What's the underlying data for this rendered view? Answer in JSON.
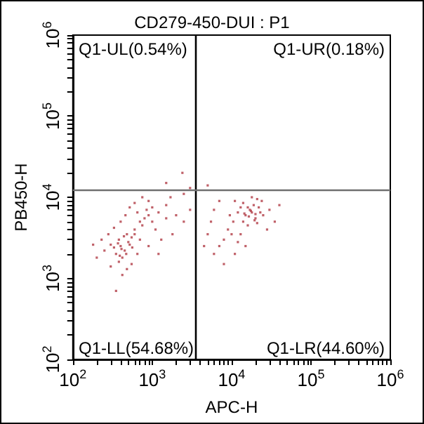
{
  "chart_data": {
    "type": "scatter",
    "title": "CD279-450-DUI : P1",
    "xlabel": "APC-H",
    "ylabel": "PB450-H",
    "log": "xy",
    "grid": false,
    "marker": "square",
    "xlim": [
      100,
      1000000
    ],
    "ylim": [
      100,
      1000000
    ],
    "xticks": [
      {
        "value": 100,
        "label": "10$^{2}$"
      },
      {
        "value": 200,
        "label": null
      },
      {
        "value": 300,
        "label": null
      },
      {
        "value": 400,
        "label": null
      },
      {
        "value": 500,
        "label": null
      },
      {
        "value": 600,
        "label": null
      },
      {
        "value": 700,
        "label": null
      },
      {
        "value": 800,
        "label": null
      },
      {
        "value": 900,
        "label": null
      },
      {
        "value": 1000,
        "label": "10$^{3}$"
      },
      {
        "value": 2000,
        "label": null
      },
      {
        "value": 3000,
        "label": null
      },
      {
        "value": 4000,
        "label": null
      },
      {
        "value": 5000,
        "label": null
      },
      {
        "value": 6000,
        "label": null
      },
      {
        "value": 7000,
        "label": null
      },
      {
        "value": 8000,
        "label": null
      },
      {
        "value": 9000,
        "label": null
      },
      {
        "value": 10000,
        "label": "10$^{4}$"
      },
      {
        "value": 20000,
        "label": null
      },
      {
        "value": 30000,
        "label": null
      },
      {
        "value": 40000,
        "label": null
      },
      {
        "value": 50000,
        "label": null
      },
      {
        "value": 60000,
        "label": null
      },
      {
        "value": 70000,
        "label": null
      },
      {
        "value": 80000,
        "label": null
      },
      {
        "value": 90000,
        "label": null
      },
      {
        "value": 100000,
        "label": "10$^{5}$"
      },
      {
        "value": 200000,
        "label": null
      },
      {
        "value": 300000,
        "label": null
      },
      {
        "value": 400000,
        "label": null
      },
      {
        "value": 500000,
        "label": null
      },
      {
        "value": 600000,
        "label": null
      },
      {
        "value": 700000,
        "label": null
      },
      {
        "value": 800000,
        "label": null
      },
      {
        "value": 900000,
        "label": null
      },
      {
        "value": 1000000,
        "label": "10$^{6}$"
      }
    ],
    "yticks": [
      {
        "value": 100,
        "label": "10$^{2}$"
      },
      {
        "value": 200,
        "label": null
      },
      {
        "value": 300,
        "label": null
      },
      {
        "value": 400,
        "label": null
      },
      {
        "value": 500,
        "label": null
      },
      {
        "value": 600,
        "label": null
      },
      {
        "value": 700,
        "label": null
      },
      {
        "value": 800,
        "label": null
      },
      {
        "value": 900,
        "label": null
      },
      {
        "value": 1000,
        "label": "10$^{3}$"
      },
      {
        "value": 2000,
        "label": null
      },
      {
        "value": 3000,
        "label": null
      },
      {
        "value": 4000,
        "label": null
      },
      {
        "value": 5000,
        "label": null
      },
      {
        "value": 6000,
        "label": null
      },
      {
        "value": 7000,
        "label": null
      },
      {
        "value": 8000,
        "label": null
      },
      {
        "value": 9000,
        "label": null
      },
      {
        "value": 10000,
        "label": "10$^{4}$"
      },
      {
        "value": 20000,
        "label": null
      },
      {
        "value": 30000,
        "label": null
      },
      {
        "value": 40000,
        "label": null
      },
      {
        "value": 50000,
        "label": null
      },
      {
        "value": 60000,
        "label": null
      },
      {
        "value": 70000,
        "label": null
      },
      {
        "value": 80000,
        "label": null
      },
      {
        "value": 90000,
        "label": null
      },
      {
        "value": 100000,
        "label": "10$^{5}$"
      },
      {
        "value": 200000,
        "label": null
      },
      {
        "value": 300000,
        "label": null
      },
      {
        "value": 400000,
        "label": null
      },
      {
        "value": 500000,
        "label": null
      },
      {
        "value": 600000,
        "label": null
      },
      {
        "value": 700000,
        "label": null
      },
      {
        "value": 800000,
        "label": null
      },
      {
        "value": 900000,
        "label": null
      },
      {
        "value": 1000000,
        "label": "10$^{6}$"
      }
    ],
    "ref_lines": [
      {
        "axis": "x",
        "value": 3550,
        "color": "#000000"
      },
      {
        "axis": "y",
        "value": 12300,
        "color": "#707070"
      }
    ],
    "annotations": [
      "Q1-UL(0.54%)",
      "Q1-UR(0.18%)",
      "Q1-LL(54.68%)",
      "Q1-LR(44.60%)"
    ],
    "series": [
      {
        "color": "#b03a44",
        "x": [
          400,
          450,
          380,
          500,
          420,
          350,
          300,
          480,
          550,
          600,
          700,
          800,
          900,
          1000,
          1200,
          650,
          750,
          850,
          1100,
          1500,
          2000,
          2500,
          1800,
          1300,
          250,
          200,
          280,
          330,
          400,
          460,
          520,
          600,
          900,
          1500,
          700,
          550,
          480,
          420,
          300,
          380,
          350,
          2500,
          3000,
          1200,
          650,
          560,
          440,
          370,
          410,
          470,
          390,
          330,
          520,
          600,
          230,
          180,
          900,
          1000,
          1700,
          750,
          2400,
          1500,
          3000,
          15000,
          18000,
          20000,
          17000,
          22000,
          14000,
          16000,
          19000,
          25000,
          13000,
          21000,
          12000,
          30000,
          24000,
          18000,
          11000,
          14000,
          20000,
          16500,
          17500,
          9000,
          8000,
          7000,
          10000,
          12000,
          6000,
          8000,
          11000,
          15000,
          5500,
          6000,
          7000,
          5000,
          4500,
          40000,
          35000,
          28000,
          13000,
          9500,
          10500,
          23000,
          19500,
          16000,
          14500,
          21000,
          5000
        ],
        "values": [
          2500,
          2200,
          3000,
          2800,
          1800,
          2000,
          2600,
          3500,
          3200,
          4000,
          5000,
          5500,
          6000,
          5000,
          6500,
          6500,
          4500,
          7000,
          4000,
          5500,
          6000,
          5000,
          3500,
          3000,
          2200,
          1800,
          3500,
          4200,
          5000,
          6000,
          7500,
          8500,
          9000,
          8000,
          3000,
          1500,
          1300,
          1100,
          1400,
          1600,
          700,
          11000,
          7000,
          2000,
          2000,
          2400,
          3300,
          2700,
          2300,
          2000,
          1900,
          2400,
          2600,
          3500,
          3000,
          2600,
          2500,
          7500,
          10000,
          10000,
          20000,
          15000,
          13000,
          6000,
          6500,
          5500,
          7000,
          7500,
          5000,
          4500,
          8000,
          6000,
          7500,
          4800,
          6500,
          7000,
          9000,
          10000,
          9000,
          8500,
          6200,
          5800,
          6800,
          4000,
          3000,
          2500,
          3500,
          2800,
          2000,
          1500,
          2000,
          2500,
          5000,
          7000,
          9000,
          3500,
          2500,
          8000,
          5000,
          4000,
          3500,
          6000,
          5000,
          6500,
          5200,
          7500,
          6300,
          9500,
          14000
        ]
      }
    ]
  }
}
